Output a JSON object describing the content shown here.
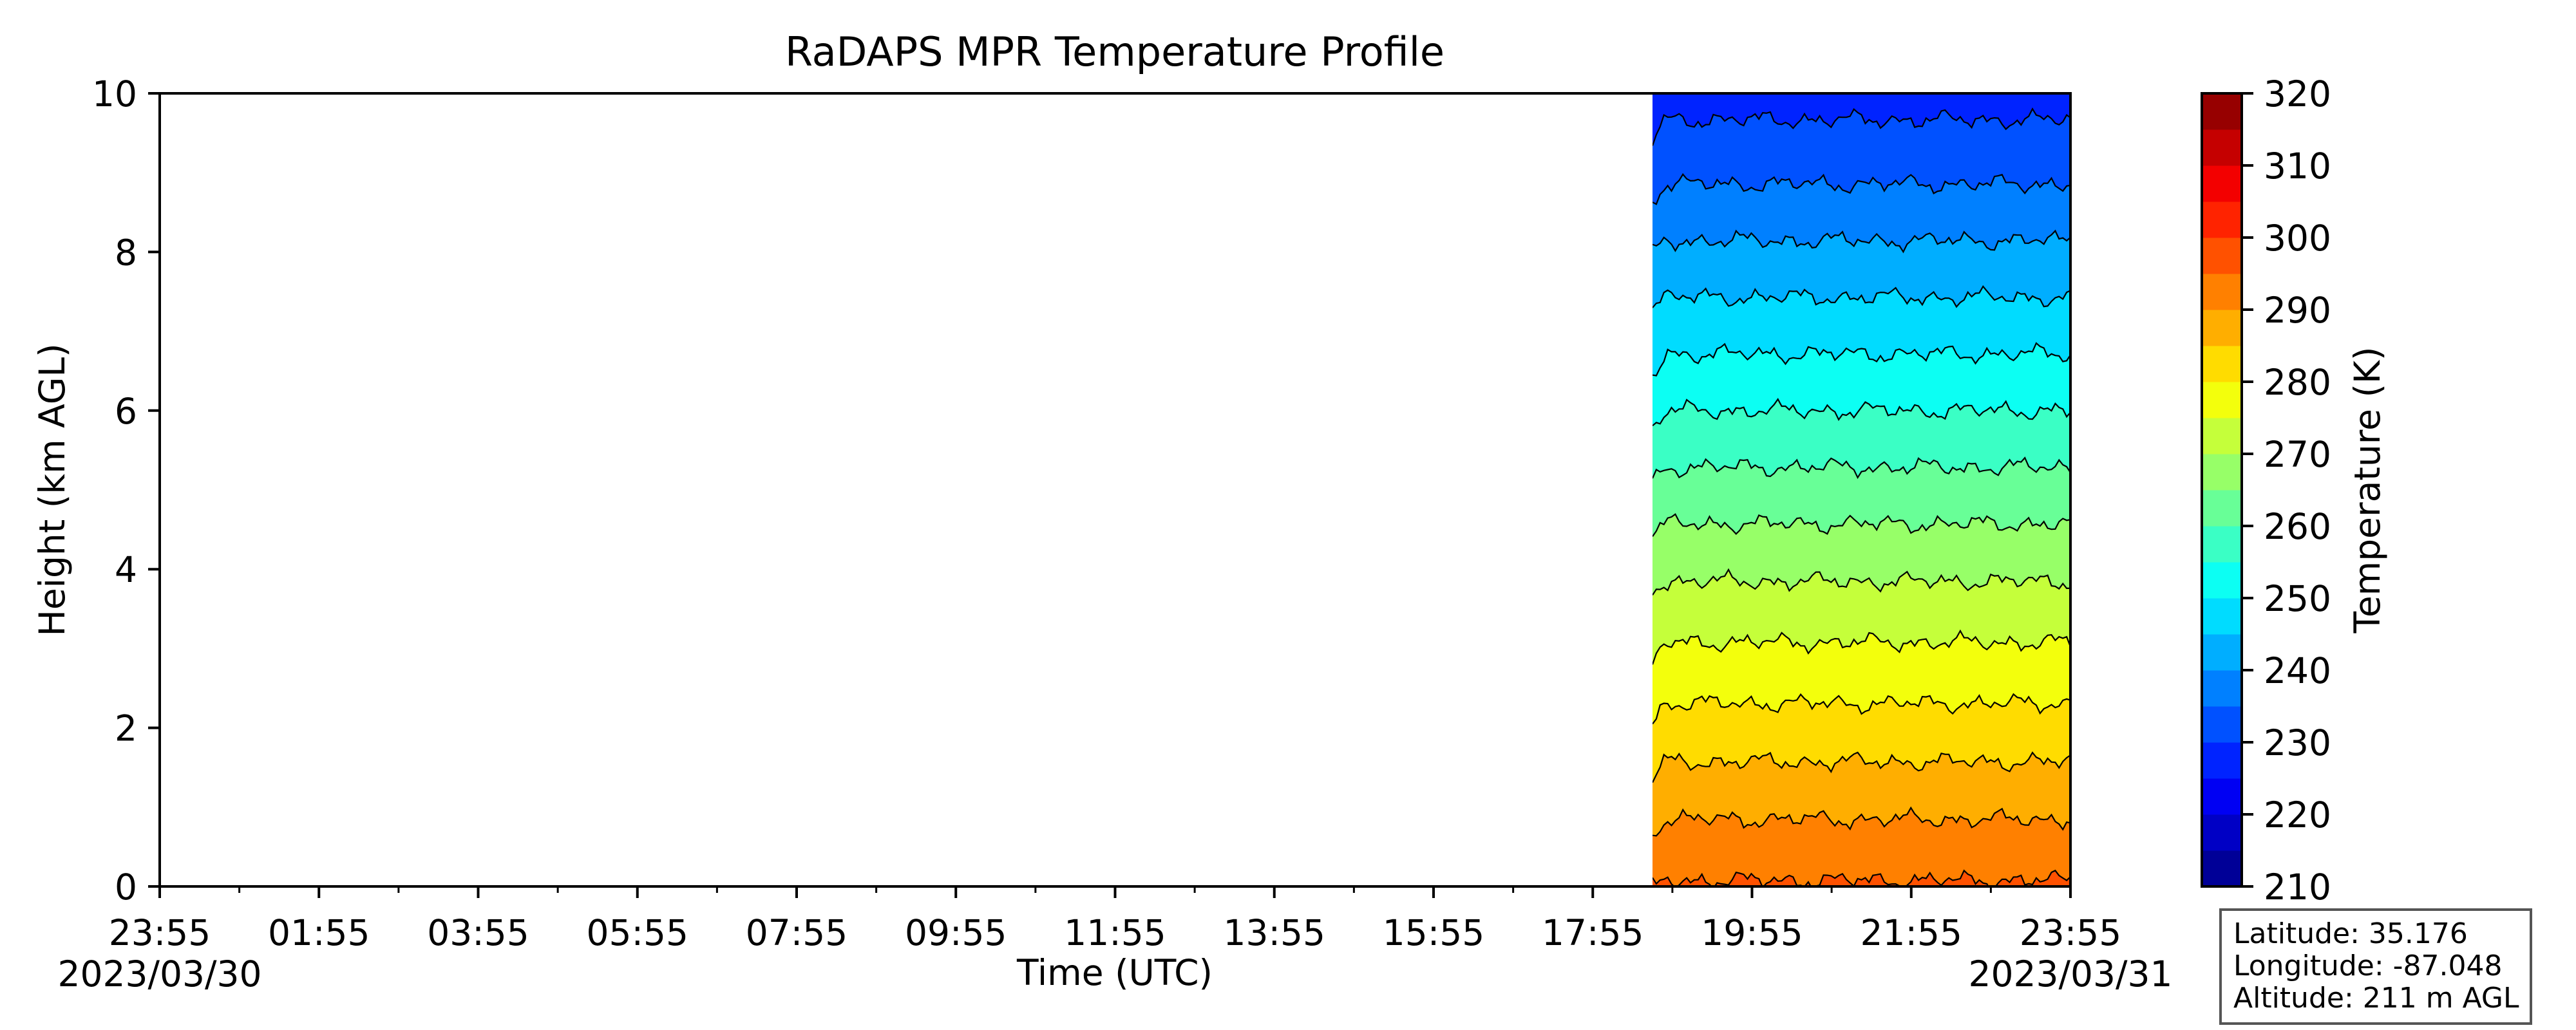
{
  "chart_data": {
    "type": "heatmap",
    "title": "RaDAPS MPR Temperature Profile",
    "xlabel": "Time (UTC)",
    "ylabel": "Height (km AGL)",
    "xlim": [
      "2023/03/30 23:55",
      "2023/03/31 23:55"
    ],
    "ylim": [
      0,
      10
    ],
    "x_tick_labels": [
      "23:55",
      "01:55",
      "03:55",
      "05:55",
      "07:55",
      "09:55",
      "11:55",
      "13:55",
      "15:55",
      "17:55",
      "19:55",
      "21:55",
      "23:55"
    ],
    "x_date_labels": [
      "2023/03/30",
      "2023/03/31"
    ],
    "y_ticks": [
      0,
      2,
      4,
      6,
      8,
      10
    ],
    "data_time_range": [
      "2023/03/31 18:40",
      "2023/03/31 23:55"
    ],
    "colorbar": {
      "label": "Temperature (K)",
      "colormap": "jet",
      "range": [
        210,
        320
      ],
      "level_step": 5,
      "ticks": [
        210,
        220,
        230,
        240,
        250,
        260,
        270,
        280,
        290,
        300,
        310,
        320
      ]
    },
    "temperature_profile": {
      "height_km": [
        0,
        1,
        2,
        3,
        4,
        5,
        6,
        7,
        8,
        9,
        10
      ],
      "temperature_K": [
        295.5,
        289,
        282,
        275.5,
        269,
        262,
        255,
        248,
        241,
        234,
        228
      ]
    },
    "contour_levels_K": [
      230,
      235,
      240,
      245,
      250,
      255,
      260,
      265,
      270,
      275,
      280,
      285,
      290,
      295
    ]
  },
  "info_box": {
    "latitude": "Latitude: 35.176",
    "longitude": "Longitude: -87.048",
    "altitude": "Altitude: 211 m AGL"
  }
}
